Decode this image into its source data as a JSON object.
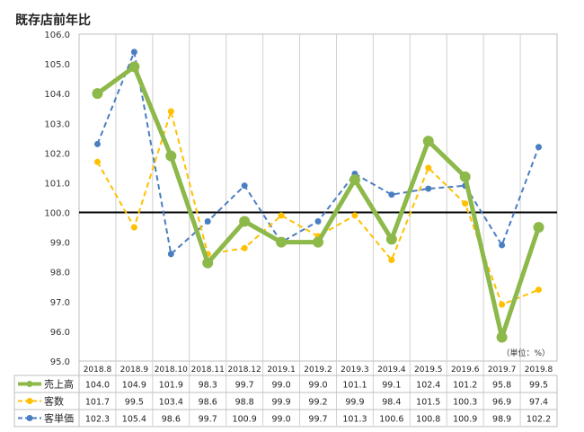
{
  "chart_data": {
    "type": "line",
    "title": "既存店前年比",
    "unit_label": "（単位：%）",
    "ylim": [
      95.0,
      106.0
    ],
    "yticks": [
      "95.0",
      "96.0",
      "97.0",
      "98.0",
      "99.0",
      "100.0",
      "101.0",
      "102.0",
      "103.0",
      "104.0",
      "105.0",
      "106.0"
    ],
    "reference_line": 100.0,
    "categories": [
      "2018.8",
      "2018.9",
      "2018.10",
      "2018.11",
      "2018.12",
      "2019.1",
      "2019.2",
      "2019.3",
      "2019.4",
      "2019.5",
      "2019.6",
      "2019.7",
      "2019.8"
    ],
    "series": [
      {
        "name": "売上高",
        "color": "#8DB84A",
        "style": "solid",
        "values": [
          104.0,
          104.9,
          101.9,
          98.3,
          99.7,
          99.0,
          99.0,
          101.1,
          99.1,
          102.4,
          101.2,
          95.8,
          99.5
        ],
        "labels": [
          "104.0",
          "104.9",
          "101.9",
          "98.3",
          "99.7",
          "99.0",
          "99.0",
          "101.1",
          "99.1",
          "102.4",
          "101.2",
          "95.8",
          "99.5"
        ]
      },
      {
        "name": "客数",
        "color": "#FFC000",
        "style": "dashed",
        "values": [
          101.7,
          99.5,
          103.4,
          98.6,
          98.8,
          99.9,
          99.2,
          99.9,
          98.4,
          101.5,
          100.3,
          96.9,
          97.4
        ],
        "labels": [
          "101.7",
          "99.5",
          "103.4",
          "98.6",
          "98.8",
          "99.9",
          "99.2",
          "99.9",
          "98.4",
          "101.5",
          "100.3",
          "96.9",
          "97.4"
        ]
      },
      {
        "name": "客単価",
        "color": "#4A7EC2",
        "style": "dashed",
        "values": [
          102.3,
          105.4,
          98.6,
          99.7,
          100.9,
          99.0,
          99.7,
          101.3,
          100.6,
          100.8,
          100.9,
          98.9,
          102.2
        ],
        "labels": [
          "102.3",
          "105.4",
          "98.6",
          "99.7",
          "100.9",
          "99.0",
          "99.7",
          "101.3",
          "100.6",
          "100.8",
          "100.9",
          "98.9",
          "102.2"
        ]
      }
    ]
  }
}
